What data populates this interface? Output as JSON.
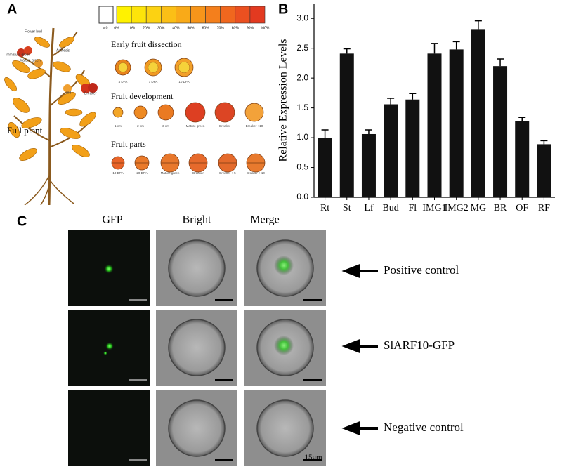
{
  "panel_labels": [
    "A",
    "B",
    "C"
  ],
  "panel_a": {
    "scale_labels": [
      "≈ 0",
      "0%",
      "10%",
      "20%",
      "30%",
      "40%",
      "50%",
      "60%",
      "70%",
      "80%",
      "90%",
      "100%"
    ],
    "plant_labels": [
      "Flower bud",
      "Anthesis",
      "Immature green",
      "Mature green",
      "Red",
      "Breaker"
    ],
    "full_plant": "Full plant",
    "sections": [
      {
        "title": "Early fruit dissection",
        "items": [
          "4 DPA",
          "7 DPA",
          "10 DPA"
        ]
      },
      {
        "title": "Fruit development",
        "items": [
          "1 cm",
          "2 cm",
          "3 cm",
          "Mature green",
          "Breaker",
          "Breaker +10"
        ]
      },
      {
        "title": "Fruit parts",
        "items": [
          "10 DPA",
          "20 DPA",
          "Mature green",
          "Breaker",
          "Breaker + 5",
          "Breaker + 10"
        ]
      }
    ]
  },
  "chart_data": {
    "type": "bar",
    "y_label": "Relative Expression Levels",
    "categories": [
      "Rt",
      "St",
      "Lf",
      "Bud",
      "Fl",
      "IMG1",
      "IMG2",
      "MG",
      "BR",
      "OF",
      "RF"
    ],
    "values": [
      1.0,
      2.41,
      1.06,
      1.56,
      1.64,
      2.41,
      2.48,
      2.81,
      2.2,
      1.28,
      0.89
    ],
    "errors": [
      0.13,
      0.08,
      0.07,
      0.1,
      0.1,
      0.17,
      0.13,
      0.15,
      0.12,
      0.06,
      0.06
    ],
    "color": "#111111",
    "ylim": [
      0,
      3.25
    ],
    "yticks": [
      {
        "value": 0,
        "label": "0.0"
      },
      0.5,
      {
        "value": 1,
        "label": "1.0"
      },
      1.5,
      {
        "value": 2,
        "label": "2.0"
      },
      2.5,
      {
        "value": 3,
        "label": "3.0"
      }
    ]
  },
  "panel_c": {
    "columns": [
      "GFP",
      "Bright",
      "Merge"
    ],
    "rows": [
      "Positive control",
      "SlARF10-GFP",
      "Negative control"
    ],
    "scale_bar": "15um"
  }
}
